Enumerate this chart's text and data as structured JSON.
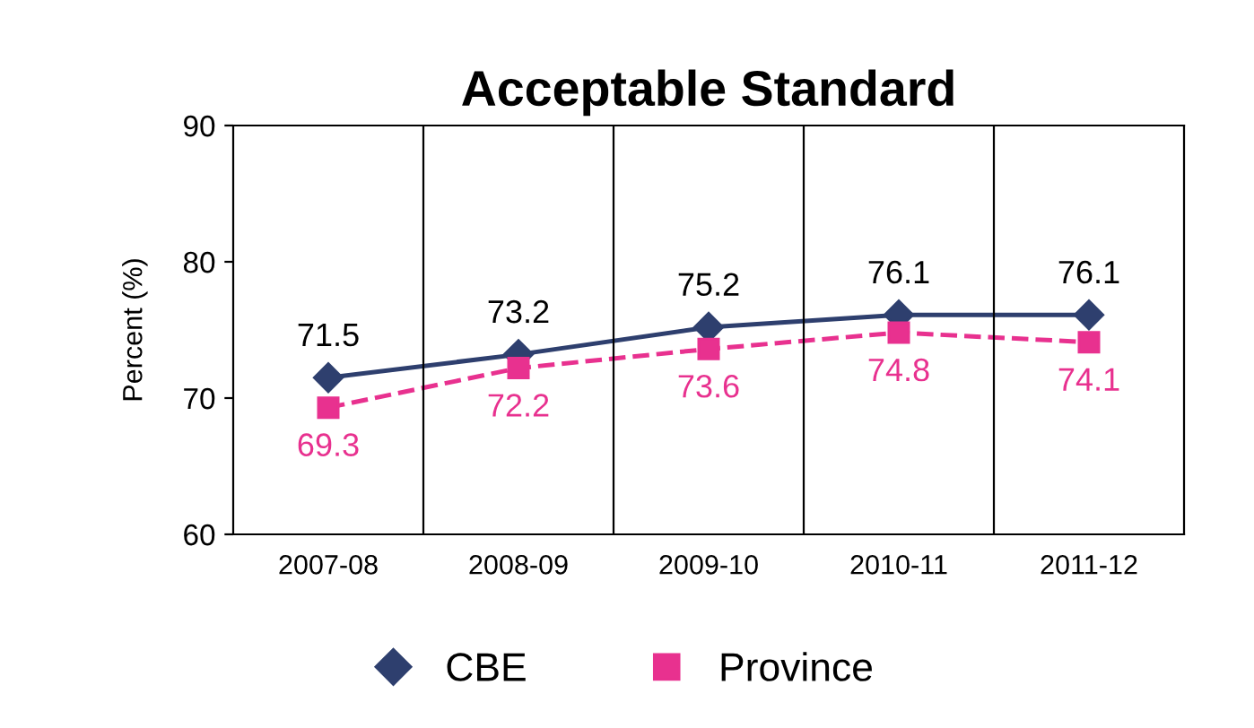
{
  "chart_data": {
    "type": "line",
    "title": "Acceptable Standard",
    "ylabel": "Percent (%)",
    "categories": [
      "2007-08",
      "2008-09",
      "2009-10",
      "2010-11",
      "2011-12"
    ],
    "series": [
      {
        "name": "CBE",
        "color": "#2e3f6e",
        "values": [
          71.5,
          73.2,
          75.2,
          76.1,
          76.1
        ],
        "marker": "diamond",
        "line_style": "solid"
      },
      {
        "name": "Province",
        "color": "#e8318f",
        "values": [
          69.3,
          72.2,
          73.6,
          74.8,
          74.1
        ],
        "marker": "square",
        "line_style": "dashed"
      }
    ],
    "ylim": [
      60,
      90
    ],
    "yticks": [
      60,
      70,
      80,
      90
    ],
    "grid": "x",
    "legend": "bottom",
    "data_labels": true
  }
}
